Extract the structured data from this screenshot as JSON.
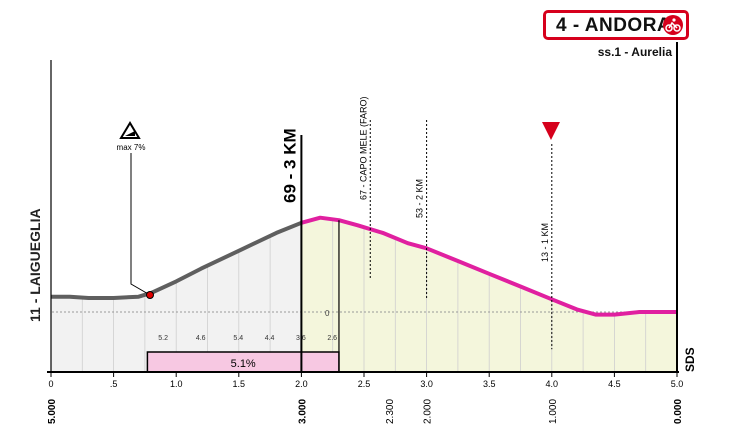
{
  "finish": {
    "title": "4 - ANDORA",
    "road": "ss.1 - Aurelia"
  },
  "start_label": "11 - LAIGUEGLIA",
  "difficulty": {
    "label": "max 7%",
    "icon": "steep-gradient-warning-icon"
  },
  "km_markers": [
    {
      "label": "69 - 3 KM",
      "km": 2.0
    },
    {
      "label": "67 - CAPO MELE (FARO)",
      "km": 2.55
    },
    {
      "label": "53 - 2 KM",
      "km": 3.0
    },
    {
      "label": "13 - 1 KM",
      "km": 4.0
    }
  ],
  "red_kite_icon": "flamme-rouge-triangle-icon",
  "sds_label": "SDS",
  "gradient_bar": {
    "label": "5.1%",
    "from_km": 0.77,
    "to_km": 2.3
  },
  "colors": {
    "climb_line": "#5f5f5f",
    "descent_line": "#e020a0",
    "fill_climb": "#f2f2f2",
    "fill_last": "#f4f6dc",
    "gradient_bar": "#f7c8e2",
    "finish_red": "#d6001c"
  },
  "chart_data": {
    "type": "area",
    "xlabel": "",
    "ylabel": "",
    "xlim": [
      0,
      5.0
    ],
    "x_ticks": [
      "0",
      ".5",
      "1.0",
      "1.5",
      "2.0",
      "2.5",
      "3.0",
      "3.5",
      "4.0",
      "4.5",
      "5.0"
    ],
    "x_tick_values": [
      0,
      0.5,
      1.0,
      1.5,
      2.0,
      2.5,
      3.0,
      3.5,
      4.0,
      4.5,
      5.0
    ],
    "to_go_ticks": [
      "5.000",
      "3.000",
      "2.300",
      "2.000",
      "1.000",
      "0.000"
    ],
    "to_go_values": [
      0,
      2.0,
      2.7,
      3.0,
      4.0,
      5.0
    ],
    "x": [
      0,
      0.15,
      0.3,
      0.5,
      0.7,
      0.8,
      1.0,
      1.2,
      1.5,
      1.8,
      2.0,
      2.15,
      2.3,
      2.45,
      2.65,
      2.85,
      3.0,
      3.25,
      3.5,
      3.75,
      4.0,
      4.2,
      4.35,
      4.5,
      4.7,
      4.9,
      5.0
    ],
    "elevation": [
      6,
      6,
      5.5,
      5.5,
      6,
      7.5,
      12,
      17,
      24,
      31,
      35,
      37,
      36,
      34,
      31,
      27,
      25,
      20,
      15,
      10,
      5,
      1,
      -1,
      -1,
      0,
      0,
      0
    ],
    "segment_gradients": [
      {
        "km": 0.8,
        "label": "5.2"
      },
      {
        "km": 1.1,
        "label": "4.6"
      },
      {
        "km": 1.4,
        "label": "5.4"
      },
      {
        "km": 1.65,
        "label": "4.4"
      },
      {
        "km": 1.9,
        "label": "3.6"
      },
      {
        "km": 2.15,
        "label": "2.6"
      }
    ],
    "zero_label": "0",
    "grid": true
  }
}
